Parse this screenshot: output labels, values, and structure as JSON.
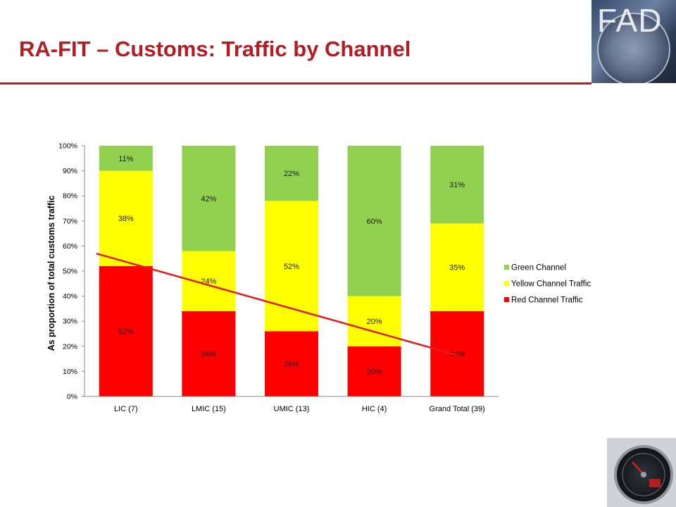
{
  "slide": {
    "title": "RA-FIT – Customs: Traffic by Channel",
    "logo_text": "FAD",
    "accent_color": "#b01e23"
  },
  "chart_data": {
    "type": "bar",
    "stacked": true,
    "categories": [
      "LIC (7)",
      "LMIC (15)",
      "UMIC (13)",
      "HIC (4)",
      "Grand Total (39)"
    ],
    "series": [
      {
        "name": "Red Channel Traffic",
        "color": "#ff0000",
        "values": [
          52,
          34,
          26,
          20,
          34
        ],
        "labels": [
          "52%",
          "34%",
          "26%",
          "20%",
          "34%"
        ]
      },
      {
        "name": "Yellow Channel Traffic",
        "color": "#ffff00",
        "values": [
          38,
          24,
          52,
          20,
          35
        ],
        "labels": [
          "38%",
          "24%",
          "52%",
          "20%",
          "35%"
        ]
      },
      {
        "name": "Green Channel",
        "color": "#92d050",
        "values": [
          11,
          42,
          22,
          60,
          31
        ],
        "labels": [
          "11%",
          "42%",
          "22%",
          "60%",
          "31%"
        ]
      }
    ],
    "legend_order": [
      "Green Channel",
      "Yellow Channel Traffic",
      "Red Channel Traffic"
    ],
    "legend_position": "right",
    "y_ticks": [
      "0%",
      "10%",
      "20%",
      "30%",
      "40%",
      "50%",
      "60%",
      "70%",
      "80%",
      "90%",
      "100%"
    ],
    "ylabel": "As proportion of total customs traffic",
    "xlabel": "",
    "ylim": [
      0,
      100
    ],
    "grid": false,
    "trendline": {
      "color": "#e31b1b",
      "start": 57,
      "end": 16.5
    }
  },
  "icons": {
    "logo": "imf-fad-logo",
    "gauge": "speedometer-gauge-icon"
  }
}
